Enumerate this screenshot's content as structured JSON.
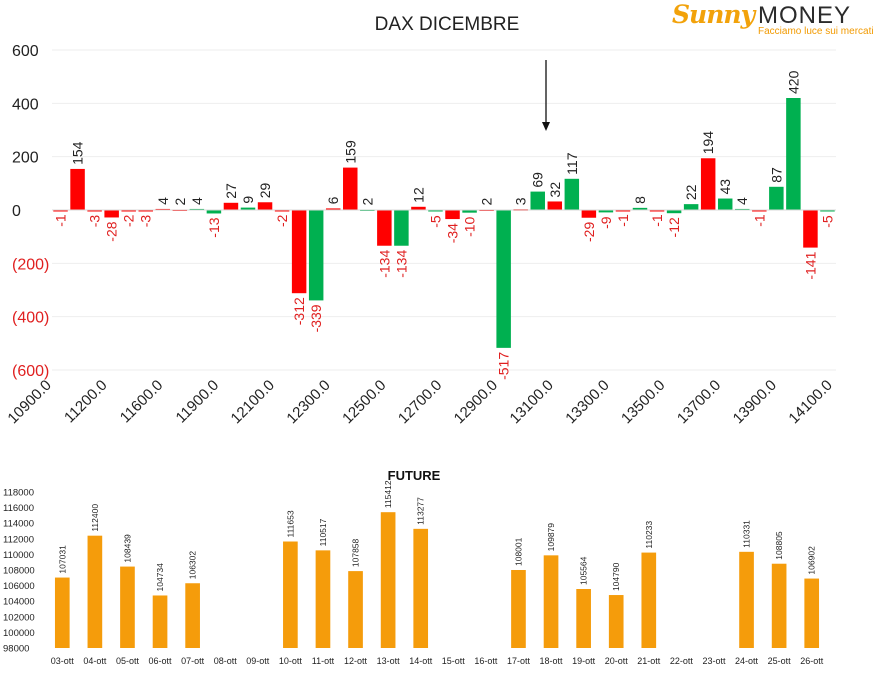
{
  "logo": {
    "brand": "Sunny",
    "name": "MONEY",
    "tagline": "Facciamo luce sui mercati"
  },
  "chart_data": [
    {
      "type": "bar",
      "title": "DAX DICEMBRE",
      "ylim": [
        -600,
        600
      ],
      "y_ticks": [
        "600",
        "400",
        "200",
        "0",
        "(200)",
        "(400)",
        "(600)"
      ],
      "y_tick_values": [
        600,
        400,
        200,
        0,
        -200,
        -400,
        -600
      ],
      "x_tick_labels": [
        "10900.0",
        "11200.0",
        "11600.0",
        "11900.0",
        "12100.0",
        "12300.0",
        "12500.0",
        "12700.0",
        "12900.0",
        "13100.0",
        "13300.0",
        "13500.0",
        "13700.0",
        "13900.0",
        "14100.0"
      ],
      "colors": {
        "positive": "#00b050",
        "negative_color": "#ff0000",
        "label_negative": "#e02020",
        "label_positive": "#222222"
      },
      "annotation": "arrow pointing down near 13100.0",
      "bars": [
        {
          "v": -1,
          "c": "red"
        },
        {
          "v": 154,
          "c": "red"
        },
        {
          "v": -3,
          "c": "red"
        },
        {
          "v": -28,
          "c": "red"
        },
        {
          "v": -2,
          "c": "red"
        },
        {
          "v": -3,
          "c": "red"
        },
        {
          "v": 4,
          "c": "red"
        },
        {
          "v": 2,
          "c": "red"
        },
        {
          "v": 4,
          "c": "green"
        },
        {
          "v": -13,
          "c": "green"
        },
        {
          "v": 27,
          "c": "red"
        },
        {
          "v": 9,
          "c": "green"
        },
        {
          "v": 29,
          "c": "red"
        },
        {
          "v": -2,
          "c": "red"
        },
        {
          "v": -312,
          "c": "red"
        },
        {
          "v": -339,
          "c": "green"
        },
        {
          "v": 6,
          "c": "red"
        },
        {
          "v": 159,
          "c": "red"
        },
        {
          "v": 2,
          "c": "green"
        },
        {
          "v": -134,
          "c": "red"
        },
        {
          "v": -134,
          "c": "green"
        },
        {
          "v": 12,
          "c": "red"
        },
        {
          "v": -5,
          "c": "green"
        },
        {
          "v": -34,
          "c": "red"
        },
        {
          "v": -10,
          "c": "green"
        },
        {
          "v": 2,
          "c": "red"
        },
        {
          "v": -517,
          "c": "green"
        },
        {
          "v": 3,
          "c": "red"
        },
        {
          "v": 69,
          "c": "green"
        },
        {
          "v": 32,
          "c": "red"
        },
        {
          "v": 117,
          "c": "green"
        },
        {
          "v": -29,
          "c": "red"
        },
        {
          "v": -9,
          "c": "green"
        },
        {
          "v": -1,
          "c": "red"
        },
        {
          "v": 8,
          "c": "green"
        },
        {
          "v": -1,
          "c": "red"
        },
        {
          "v": -12,
          "c": "green"
        },
        {
          "v": 22,
          "c": "green"
        },
        {
          "v": 194,
          "c": "red"
        },
        {
          "v": 43,
          "c": "green"
        },
        {
          "v": 4,
          "c": "green"
        },
        {
          "v": -1,
          "c": "red"
        },
        {
          "v": 87,
          "c": "green"
        },
        {
          "v": 420,
          "c": "green"
        },
        {
          "v": -141,
          "c": "red"
        },
        {
          "v": -5,
          "c": "green"
        }
      ]
    },
    {
      "type": "bar",
      "title": "FUTURE",
      "ylim": [
        98000,
        118000
      ],
      "y_ticks": [
        "118000",
        "116000",
        "114000",
        "112000",
        "110000",
        "108000",
        "106000",
        "104000",
        "102000",
        "100000",
        "98000"
      ],
      "y_tick_values": [
        118000,
        116000,
        114000,
        112000,
        110000,
        108000,
        106000,
        104000,
        102000,
        100000,
        98000
      ],
      "bar_color": "#f59c0b",
      "categories": [
        "03-ott",
        "04-ott",
        "05-ott",
        "06-ott",
        "07-ott",
        "08-ott",
        "09-ott",
        "10-ott",
        "11-ott",
        "12-ott",
        "13-ott",
        "14-ott",
        "15-ott",
        "16-ott",
        "17-ott",
        "18-ott",
        "19-ott",
        "20-ott",
        "21-ott",
        "22-ott",
        "23-ott",
        "24-ott",
        "25-ott",
        "26-ott"
      ],
      "values": [
        107031,
        112400,
        108439,
        104734,
        106302,
        null,
        null,
        111653,
        110517,
        107858,
        115412,
        113277,
        null,
        null,
        108001,
        109879,
        105564,
        104790,
        110233,
        null,
        null,
        110331,
        108805,
        106902
      ],
      "value_labels": [
        "107031",
        "112400",
        "108439",
        "104734",
        "106302",
        "",
        "",
        "111653",
        "110517",
        "107858",
        "115412",
        "113277",
        "",
        "",
        "108001",
        "109879",
        "105564",
        "104790",
        "110233",
        "",
        "",
        "110331",
        "108805",
        "106902"
      ]
    }
  ]
}
